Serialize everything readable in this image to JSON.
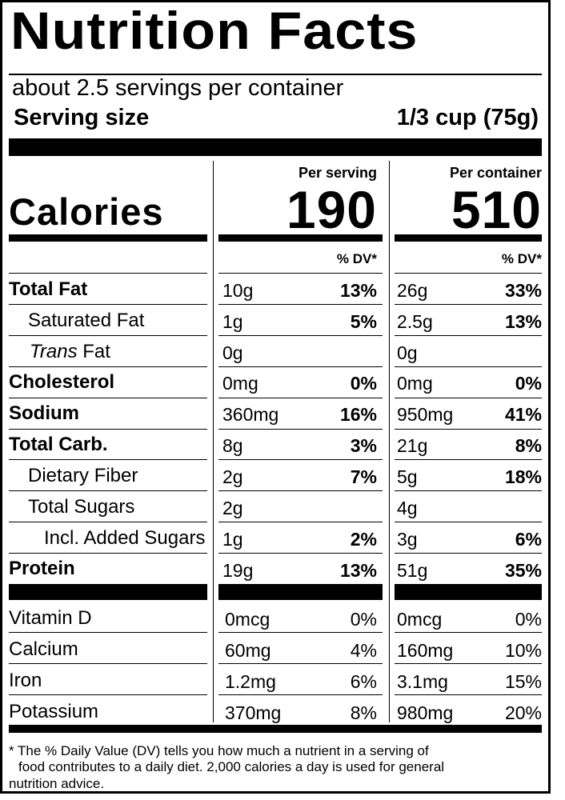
{
  "header": {
    "title": "Nutrition Facts",
    "servings_per_container": "about 2.5 servings per container",
    "serving_size_label": "Serving size",
    "serving_size_value": "1/3 cup (75g)"
  },
  "columns": {
    "per_serving": "Per serving",
    "per_container": "Per container",
    "dv_header": "% DV*"
  },
  "calories": {
    "label": "Calories",
    "per_serving": "190",
    "per_container": "510"
  },
  "nutrients": [
    {
      "name": "Total Fat",
      "serving_amount": "10g",
      "serving_dv": "13%",
      "container_amount": "26g",
      "container_dv": "33%"
    },
    {
      "name": "Saturated Fat",
      "serving_amount": "1g",
      "serving_dv": "5%",
      "container_amount": "2.5g",
      "container_dv": "13%"
    },
    {
      "name_italic": "Trans",
      "name": " Fat",
      "serving_amount": "0g",
      "serving_dv": "",
      "container_amount": "0g",
      "container_dv": ""
    },
    {
      "name": "Cholesterol",
      "serving_amount": "0mg",
      "serving_dv": "0%",
      "container_amount": "0mg",
      "container_dv": "0%"
    },
    {
      "name": "Sodium",
      "serving_amount": "360mg",
      "serving_dv": "16%",
      "container_amount": "950mg",
      "container_dv": "41%"
    },
    {
      "name": "Total Carb.",
      "serving_amount": "8g",
      "serving_dv": "3%",
      "container_amount": "21g",
      "container_dv": "8%"
    },
    {
      "name": "Dietary Fiber",
      "serving_amount": "2g",
      "serving_dv": "7%",
      "container_amount": "5g",
      "container_dv": "18%"
    },
    {
      "name": "Total Sugars",
      "serving_amount": "2g",
      "serving_dv": "",
      "container_amount": "4g",
      "container_dv": ""
    },
    {
      "name": "Incl. Added Sugars",
      "serving_amount": "1g",
      "serving_dv": "2%",
      "container_amount": "3g",
      "container_dv": "6%"
    },
    {
      "name": "Protein",
      "serving_amount": "19g",
      "serving_dv": "13%",
      "container_amount": "51g",
      "container_dv": "35%"
    }
  ],
  "vitamins": [
    {
      "name": "Vitamin D",
      "serving_amount": "0mcg",
      "serving_dv": "0%",
      "container_amount": "0mcg",
      "container_dv": "0%"
    },
    {
      "name": "Calcium",
      "serving_amount": "60mg",
      "serving_dv": "4%",
      "container_amount": "160mg",
      "container_dv": "10%"
    },
    {
      "name": "Iron",
      "serving_amount": "1.2mg",
      "serving_dv": "6%",
      "container_amount": "3.1mg",
      "container_dv": "15%"
    },
    {
      "name": "Potassium",
      "serving_amount": "370mg",
      "serving_dv": "8%",
      "container_amount": "980mg",
      "container_dv": "20%"
    }
  ],
  "footnote": {
    "line1": "* The % Daily Value (DV) tells you how much a nutrient in a serving of",
    "line2": "food contributes to a daily diet. 2,000 calories a day is used for general",
    "line3": "nutrition advice."
  }
}
